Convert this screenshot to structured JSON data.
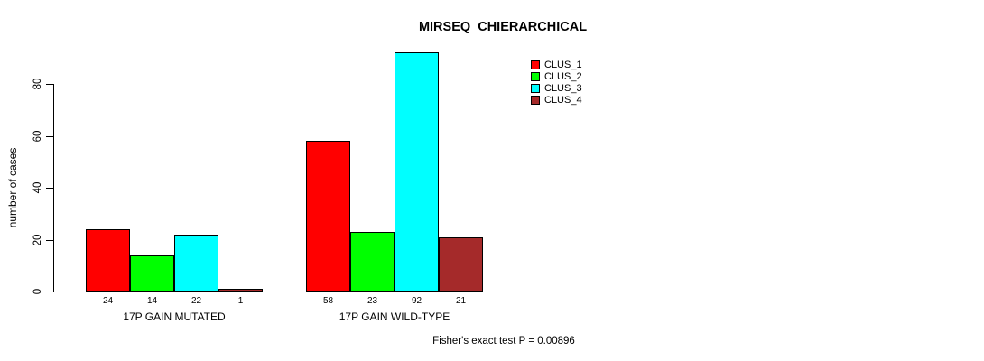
{
  "title": "MIRSEQ_CHIERARCHICAL",
  "footer": "Fisher's exact test P = 0.00896",
  "chart_data": {
    "type": "bar",
    "title": "MIRSEQ_CHIERARCHICAL",
    "xlabel": "",
    "ylabel": "number of cases",
    "ylim": [
      0,
      80
    ],
    "yticks": [
      0,
      20,
      40,
      60,
      80
    ],
    "grid": false,
    "legend_position": "top-right",
    "bar_value_labels": true,
    "annotation": "Fisher's exact test P = 0.00896",
    "categories": [
      "17P GAIN MUTATED",
      "17P GAIN WILD-TYPE"
    ],
    "series": [
      {
        "name": "CLUS_1",
        "color": "#FF0000",
        "values": [
          24,
          58
        ]
      },
      {
        "name": "CLUS_2",
        "color": "#00FF00",
        "values": [
          14,
          23
        ]
      },
      {
        "name": "CLUS_3",
        "color": "#00FFFF",
        "values": [
          22,
          92
        ]
      },
      {
        "name": "CLUS_4",
        "color": "#A52A2A",
        "values": [
          1,
          21
        ]
      }
    ]
  }
}
